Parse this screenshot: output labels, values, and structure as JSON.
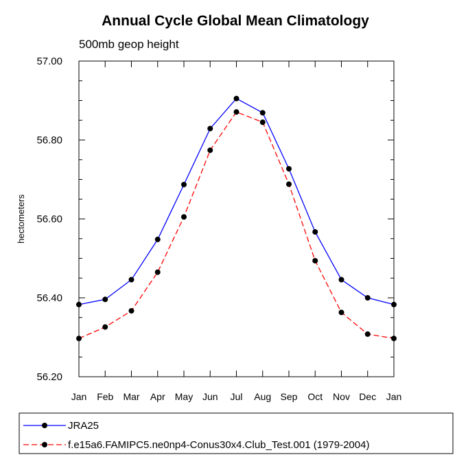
{
  "chart_data": {
    "type": "line",
    "title": "Annual Cycle Global Mean Climatology",
    "subtitle": "500mb geop height",
    "ylabel": "hectometers",
    "xlabel": "",
    "categories": [
      "Jan",
      "Feb",
      "Mar",
      "Apr",
      "May",
      "Jun",
      "Jul",
      "Aug",
      "Sep",
      "Oct",
      "Nov",
      "Dec",
      "Jan"
    ],
    "ylim": [
      56.2,
      57.0
    ],
    "yticks": [
      "56.20",
      "56.40",
      "56.60",
      "56.80",
      "57.00"
    ],
    "series": [
      {
        "name": "JRA25",
        "color": "#0000ff",
        "dash": "solid",
        "values": [
          56.383,
          56.396,
          56.446,
          56.548,
          56.687,
          56.829,
          56.905,
          56.869,
          56.727,
          56.567,
          56.446,
          56.4,
          56.383
        ]
      },
      {
        "name": "f.e15a6.FAMIPC5.ne0np4-Conus30x4.Club_Test.001 (1979-2004)",
        "color": "#ff0000",
        "dash": "dashed",
        "values": [
          56.297,
          56.326,
          56.367,
          56.465,
          56.605,
          56.774,
          56.871,
          56.845,
          56.688,
          56.494,
          56.363,
          56.308,
          56.297
        ]
      }
    ],
    "legend_position": "bottom"
  }
}
